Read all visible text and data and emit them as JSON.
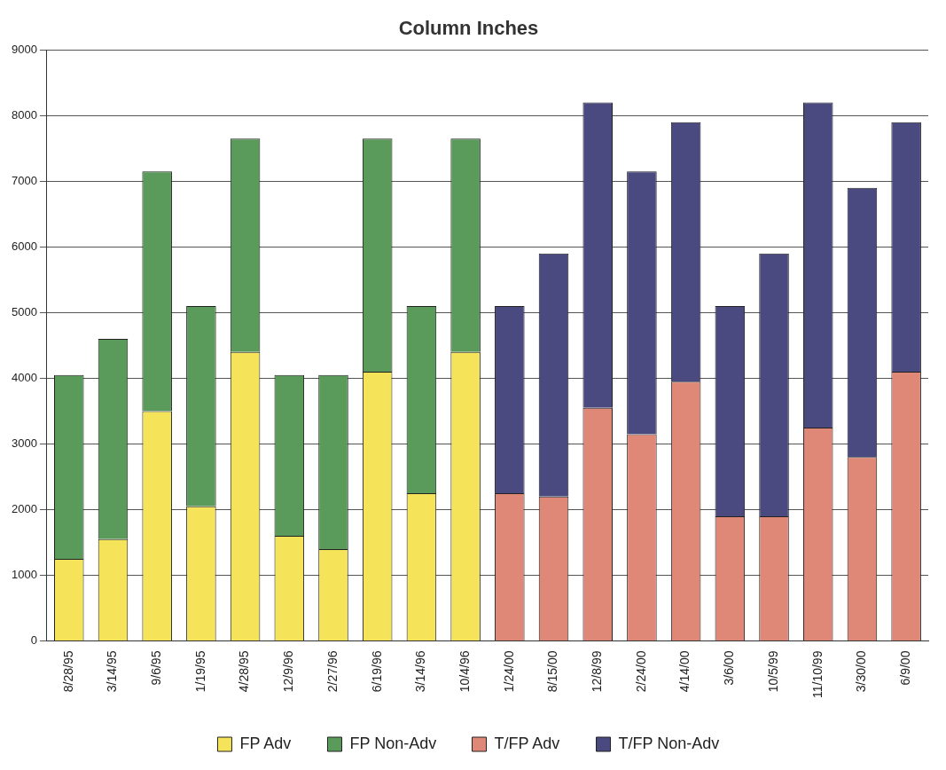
{
  "chart_data": {
    "type": "bar",
    "title": "Column Inches",
    "stacked": true,
    "grid": "y",
    "legend": "bottom",
    "categories": [
      "8/28/95",
      "3/14/95",
      "9/6/95",
      "1/19/95",
      "4/28/95",
      "12/9/96",
      "2/27/96",
      "6/19/96",
      "3/14/96",
      "10/4/96",
      "1/24/00",
      "8/15/00",
      "12/8/99",
      "2/24/00",
      "4/14/00",
      "3/6/00",
      "10/5/99",
      "11/10/99",
      "3/30/00",
      "6/9/00"
    ],
    "ylim": [
      0,
      9000
    ],
    "yticks": [
      0,
      1000,
      2000,
      3000,
      4000,
      5000,
      6000,
      7000,
      8000,
      9000
    ],
    "series": [
      {
        "name": "FP Adv",
        "color": "#f5e35a",
        "values": [
          1250,
          1550,
          3500,
          2050,
          4400,
          1600,
          1400,
          4100,
          2250,
          4400,
          null,
          null,
          null,
          null,
          null,
          null,
          null,
          null,
          null,
          null
        ]
      },
      {
        "name": "FP Non-Adv",
        "color": "#5a9a5a",
        "values": [
          2800,
          3050,
          3650,
          3050,
          3250,
          2450,
          2650,
          3550,
          2850,
          3250,
          null,
          null,
          null,
          null,
          null,
          null,
          null,
          null,
          null,
          null
        ]
      },
      {
        "name": "T/FP Adv",
        "color": "#e08878",
        "values": [
          null,
          null,
          null,
          null,
          null,
          null,
          null,
          null,
          null,
          null,
          2250,
          2200,
          3550,
          3150,
          3950,
          1900,
          1900,
          3250,
          2800,
          4100
        ]
      },
      {
        "name": "T/FP Non-Adv",
        "color": "#4a4a80",
        "values": [
          null,
          null,
          null,
          null,
          null,
          null,
          null,
          null,
          null,
          null,
          2850,
          3700,
          4650,
          4000,
          3950,
          3200,
          4000,
          4950,
          4100,
          3800
        ]
      }
    ]
  }
}
